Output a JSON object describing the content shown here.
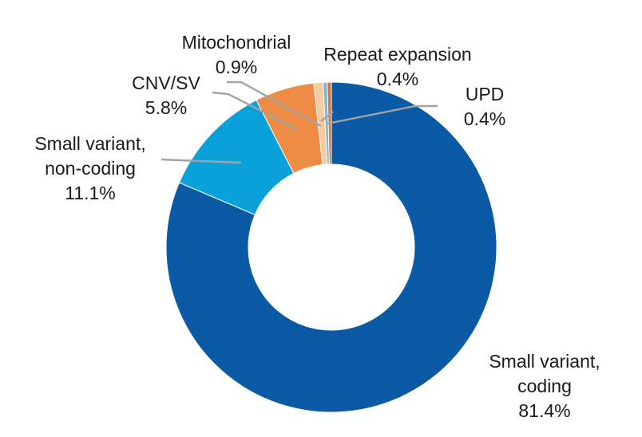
{
  "chart_data": {
    "type": "pie",
    "donut": true,
    "title": "",
    "slices": [
      {
        "label_lines": [
          "Small variant,",
          "coding"
        ],
        "value": 81.4,
        "value_label": "81.4%",
        "color": "#0a5aa6"
      },
      {
        "label_lines": [
          "Small variant,",
          "non-coding"
        ],
        "value": 11.1,
        "value_label": "11.1%",
        "color": "#0aa0d9"
      },
      {
        "label_lines": [
          "CNV/SV"
        ],
        "value": 5.8,
        "value_label": "5.8%",
        "color": "#ee8c45"
      },
      {
        "label_lines": [
          "Mitochondrial"
        ],
        "value": 0.9,
        "value_label": "0.9%",
        "color": "#f5cca2"
      },
      {
        "label_lines": [
          "Repeat expansion"
        ],
        "value": 0.4,
        "value_label": "0.4%",
        "color": "#7eb4d4"
      },
      {
        "label_lines": [
          "UPD"
        ],
        "value": 0.4,
        "value_label": "0.4%",
        "color": "#d9742f"
      }
    ],
    "legend": "none"
  }
}
